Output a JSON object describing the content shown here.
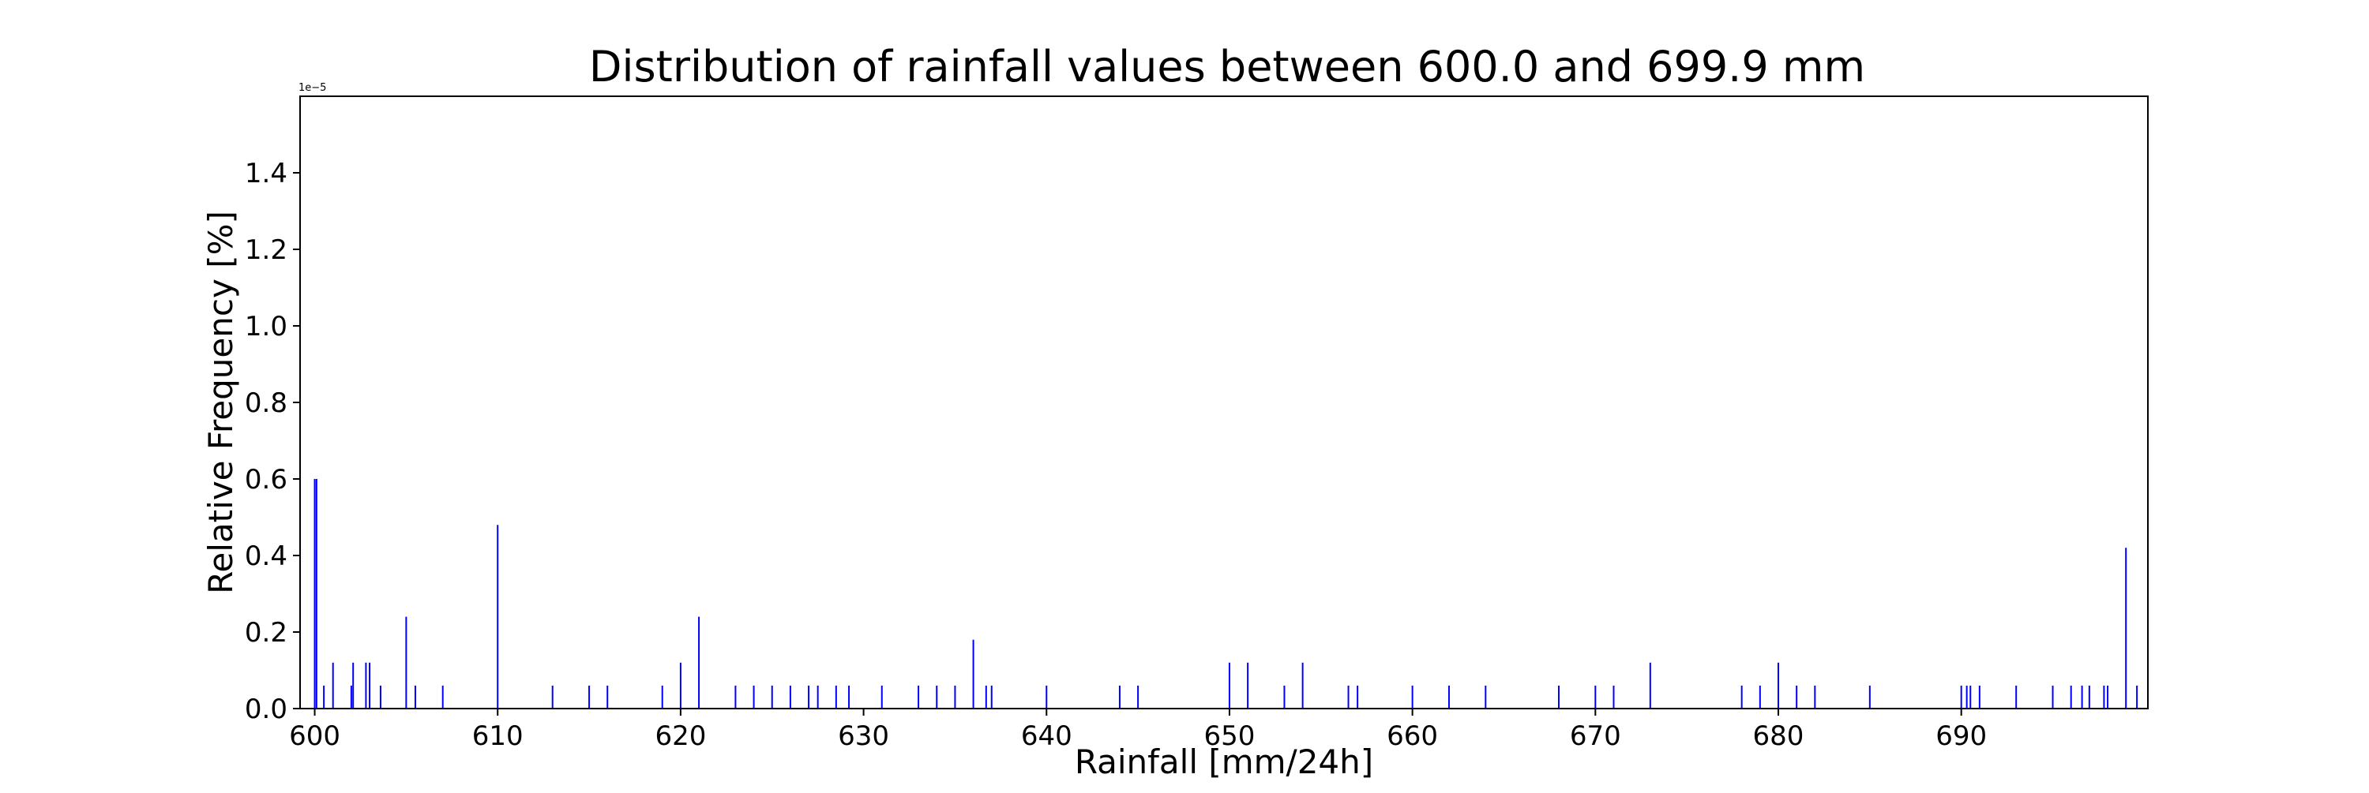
{
  "chart_data": {
    "type": "bar",
    "title": "Distribution of rainfall values between 600.0 and 699.9 mm",
    "xlabel": "Rainfall [mm/24h]",
    "ylabel": "Relative Frequency [%]",
    "y_offset_text": "1e−5",
    "xlim": [
      599.2,
      700.2
    ],
    "ylim": [
      0,
      1.6
    ],
    "x_ticks": [
      600,
      610,
      620,
      630,
      640,
      650,
      660,
      670,
      680,
      690
    ],
    "x_tick_labels": [
      "600",
      "610",
      "620",
      "630",
      "640",
      "650",
      "660",
      "670",
      "680",
      "690"
    ],
    "y_ticks": [
      0.0,
      0.2,
      0.4,
      0.6,
      0.8,
      1.0,
      1.2,
      1.4
    ],
    "y_tick_labels": [
      "0.0",
      "0.2",
      "0.4",
      "0.6",
      "0.8",
      "1.0",
      "1.2",
      "1.4"
    ],
    "grid": false,
    "bar_color": "#0000ff",
    "x": [
      600.0,
      600.1,
      600.5,
      601.0,
      602.0,
      602.1,
      602.8,
      603.0,
      603.6,
      605.0,
      605.5,
      607.0,
      610.0,
      613.0,
      615.0,
      616.0,
      619.0,
      620.0,
      621.0,
      623.0,
      624.0,
      625.0,
      626.0,
      627.0,
      627.5,
      628.5,
      629.2,
      631.0,
      633.0,
      634.0,
      635.0,
      636.0,
      636.7,
      637.0,
      640.0,
      644.0,
      645.0,
      650.0,
      651.0,
      653.0,
      654.0,
      656.5,
      657.0,
      660.0,
      662.0,
      664.0,
      668.0,
      670.0,
      671.0,
      673.0,
      678.0,
      679.0,
      680.0,
      681.0,
      682.0,
      685.0,
      690.0,
      690.3,
      690.5,
      691.0,
      693.0,
      695.0,
      696.0,
      696.6,
      697.0,
      697.8,
      698.0,
      699.0,
      699.6
    ],
    "values": [
      0.6,
      0.6,
      0.06,
      0.12,
      0.06,
      0.12,
      0.12,
      0.12,
      0.06,
      0.24,
      0.06,
      0.06,
      0.48,
      0.06,
      0.06,
      0.06,
      0.06,
      0.12,
      0.24,
      0.06,
      0.06,
      0.06,
      0.06,
      0.06,
      0.06,
      0.06,
      0.06,
      0.06,
      0.06,
      0.06,
      0.06,
      0.18,
      0.06,
      0.06,
      0.06,
      0.06,
      0.06,
      0.12,
      0.12,
      0.06,
      0.12,
      0.06,
      0.06,
      0.06,
      0.06,
      0.06,
      0.06,
      0.06,
      0.06,
      0.12,
      0.06,
      0.06,
      0.12,
      0.06,
      0.06,
      0.06,
      0.06,
      0.06,
      0.06,
      0.06,
      0.06,
      0.06,
      0.06,
      0.06,
      0.06,
      0.06,
      0.06,
      0.42,
      0.06
    ]
  }
}
